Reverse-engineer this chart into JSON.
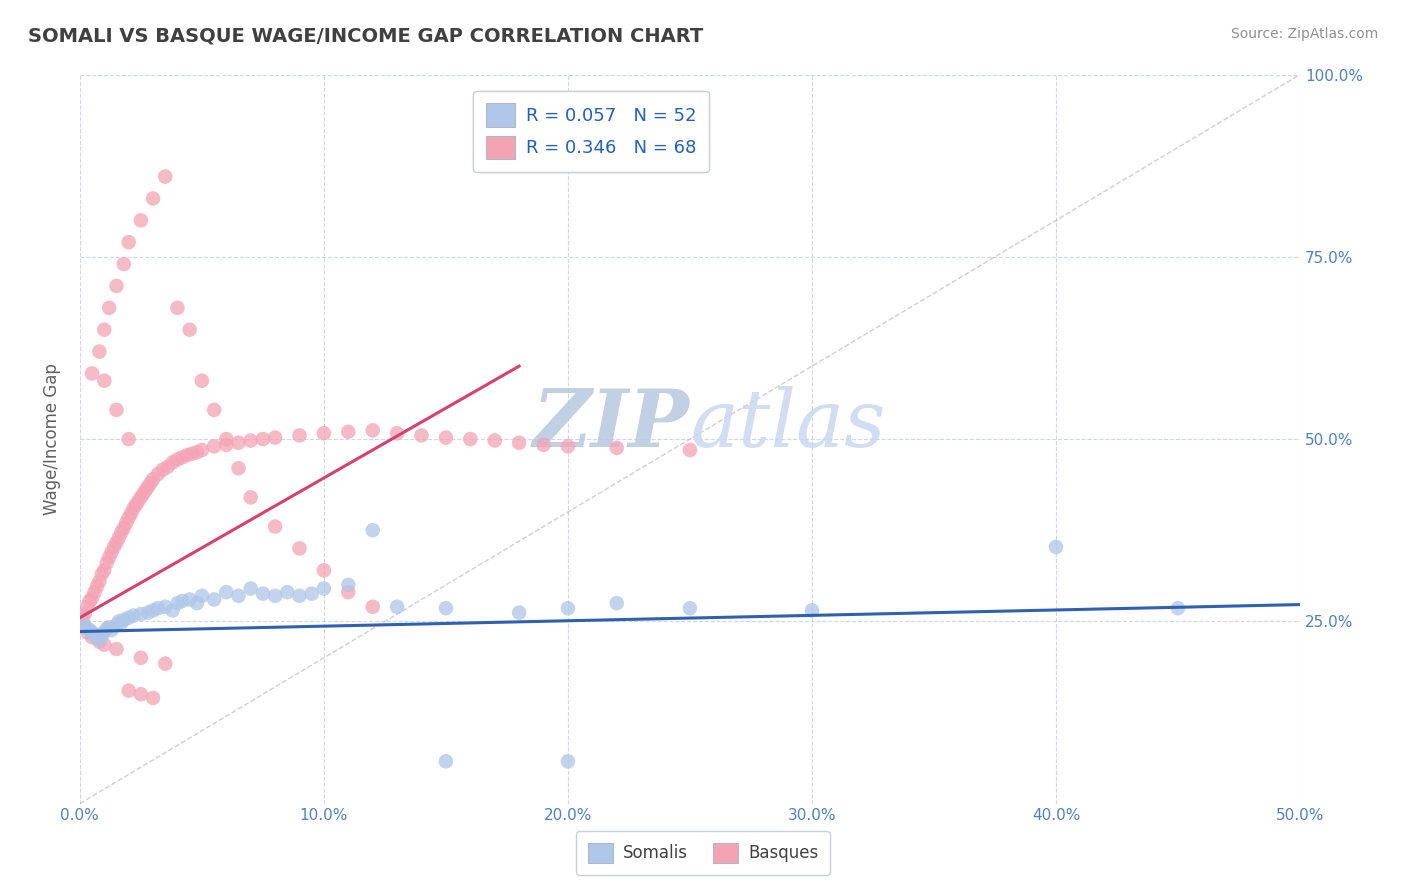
{
  "title": "SOMALI VS BASQUE WAGE/INCOME GAP CORRELATION CHART",
  "source": "Source: ZipAtlas.com",
  "ylabel": "Wage/Income Gap",
  "xlim": [
    0.0,
    0.5
  ],
  "ylim": [
    0.0,
    1.0
  ],
  "xticks": [
    0.0,
    0.1,
    0.2,
    0.3,
    0.4,
    0.5
  ],
  "yticks": [
    0.0,
    0.25,
    0.5,
    0.75,
    1.0
  ],
  "xticklabels": [
    "0.0%",
    "10.0%",
    "20.0%",
    "30.0%",
    "40.0%",
    "50.0%"
  ],
  "yticklabels_right": [
    "",
    "25.0%",
    "50.0%",
    "75.0%",
    "100.0%"
  ],
  "somali_R": 0.057,
  "somali_N": 52,
  "basque_R": 0.346,
  "basque_N": 68,
  "somali_color": "#aec6e8",
  "basque_color": "#f4a3b5",
  "somali_line_color": "#3060b0",
  "basque_line_color": "#d84070",
  "watermark_zip_color": "#b8cce4",
  "watermark_atlas_color": "#c8d8f0",
  "background_color": "#ffffff",
  "grid_color": "#c8d4e8",
  "title_color": "#404040",
  "axis_label_color": "#5080c0",
  "legend_R_color": "#2060c0",
  "somali_x": [
    0.002,
    0.003,
    0.004,
    0.005,
    0.006,
    0.007,
    0.008,
    0.009,
    0.01,
    0.011,
    0.012,
    0.013,
    0.015,
    0.016,
    0.017,
    0.018,
    0.02,
    0.022,
    0.025,
    0.028,
    0.03,
    0.032,
    0.035,
    0.038,
    0.04,
    0.042,
    0.045,
    0.048,
    0.05,
    0.055,
    0.06,
    0.065,
    0.07,
    0.075,
    0.08,
    0.085,
    0.09,
    0.095,
    0.1,
    0.11,
    0.12,
    0.13,
    0.15,
    0.18,
    0.2,
    0.22,
    0.25,
    0.3,
    0.4,
    0.45,
    0.15,
    0.2
  ],
  "somali_y": [
    0.245,
    0.24,
    0.238,
    0.235,
    0.232,
    0.228,
    0.225,
    0.23,
    0.235,
    0.24,
    0.242,
    0.238,
    0.245,
    0.25,
    0.248,
    0.252,
    0.255,
    0.258,
    0.26,
    0.262,
    0.265,
    0.268,
    0.27,
    0.265,
    0.275,
    0.278,
    0.28,
    0.275,
    0.285,
    0.28,
    0.29,
    0.285,
    0.295,
    0.288,
    0.285,
    0.29,
    0.285,
    0.288,
    0.295,
    0.3,
    0.375,
    0.27,
    0.268,
    0.262,
    0.268,
    0.275,
    0.268,
    0.265,
    0.352,
    0.268,
    0.058,
    0.058
  ],
  "basque_x": [
    0.001,
    0.002,
    0.003,
    0.004,
    0.005,
    0.006,
    0.007,
    0.008,
    0.009,
    0.01,
    0.011,
    0.012,
    0.013,
    0.014,
    0.015,
    0.016,
    0.017,
    0.018,
    0.019,
    0.02,
    0.021,
    0.022,
    0.023,
    0.024,
    0.025,
    0.026,
    0.027,
    0.028,
    0.029,
    0.03,
    0.032,
    0.034,
    0.036,
    0.038,
    0.04,
    0.042,
    0.044,
    0.046,
    0.048,
    0.05,
    0.055,
    0.06,
    0.065,
    0.07,
    0.075,
    0.08,
    0.09,
    0.1,
    0.11,
    0.12,
    0.13,
    0.14,
    0.15,
    0.16,
    0.17,
    0.18,
    0.19,
    0.2,
    0.22,
    0.25,
    0.002,
    0.003,
    0.005,
    0.008,
    0.01,
    0.015,
    0.025,
    0.035
  ],
  "basque_y": [
    0.255,
    0.26,
    0.27,
    0.278,
    0.282,
    0.29,
    0.298,
    0.305,
    0.315,
    0.32,
    0.33,
    0.338,
    0.345,
    0.352,
    0.358,
    0.365,
    0.372,
    0.378,
    0.385,
    0.392,
    0.398,
    0.405,
    0.41,
    0.415,
    0.42,
    0.425,
    0.43,
    0.435,
    0.44,
    0.445,
    0.452,
    0.458,
    0.462,
    0.468,
    0.472,
    0.475,
    0.478,
    0.48,
    0.482,
    0.485,
    0.49,
    0.492,
    0.495,
    0.498,
    0.5,
    0.502,
    0.505,
    0.508,
    0.51,
    0.512,
    0.508,
    0.505,
    0.502,
    0.5,
    0.498,
    0.495,
    0.492,
    0.49,
    0.488,
    0.485,
    0.242,
    0.235,
    0.228,
    0.222,
    0.218,
    0.212,
    0.2,
    0.192
  ],
  "basque_extra_x": [
    0.005,
    0.008,
    0.01,
    0.012,
    0.015,
    0.018,
    0.02,
    0.025,
    0.03,
    0.035,
    0.04,
    0.045,
    0.05,
    0.055,
    0.06,
    0.065,
    0.07,
    0.01,
    0.015,
    0.02,
    0.08,
    0.09,
    0.1,
    0.11,
    0.12,
    0.02,
    0.025,
    0.03
  ],
  "basque_extra_y": [
    0.59,
    0.62,
    0.65,
    0.68,
    0.71,
    0.74,
    0.77,
    0.8,
    0.83,
    0.86,
    0.68,
    0.65,
    0.58,
    0.54,
    0.5,
    0.46,
    0.42,
    0.58,
    0.54,
    0.5,
    0.38,
    0.35,
    0.32,
    0.29,
    0.27,
    0.155,
    0.15,
    0.145
  ]
}
